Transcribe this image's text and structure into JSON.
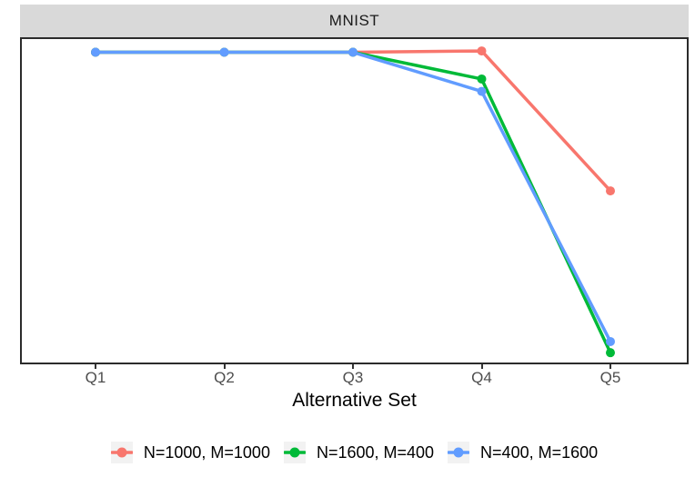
{
  "chart_data": {
    "type": "line",
    "title": "MNIST",
    "xlabel": "Alternative Set",
    "ylabel": "",
    "categories": [
      "Q1",
      "Q2",
      "Q3",
      "Q4",
      "Q5"
    ],
    "x": [
      "Q1",
      "Q2",
      "Q3",
      "Q4",
      "Q5"
    ],
    "series": [
      {
        "name": "N=1000, M=1000",
        "color": "#F8766D",
        "values": [
          0.954,
          0.954,
          0.954,
          0.958,
          0.529
        ]
      },
      {
        "name": "N=1600, M=400",
        "color": "#00BA38",
        "values": [
          0.954,
          0.954,
          0.954,
          0.872,
          0.033
        ]
      },
      {
        "name": "N=400, M=1600",
        "color": "#619CFF",
        "values": [
          0.954,
          0.954,
          0.954,
          0.834,
          0.067
        ]
      }
    ],
    "ylim": [
      0,
      1
    ],
    "y_axis_visible": false,
    "y_values_note": "y axis shows no ticks or labels in the figure; series values are relative heights (0 = panel bottom, 1 = panel top) estimated from pixels",
    "grid": false,
    "legend_position": "bottom",
    "marker": "point",
    "facet_strip": {
      "label": "MNIST",
      "background": "#D9D9D9",
      "text_color": "#1a1a1a"
    },
    "panel_border_color": "#2b2b2b",
    "axis_text_color": "#4d4d4d",
    "legend_key_background": "#F2F2F2"
  }
}
